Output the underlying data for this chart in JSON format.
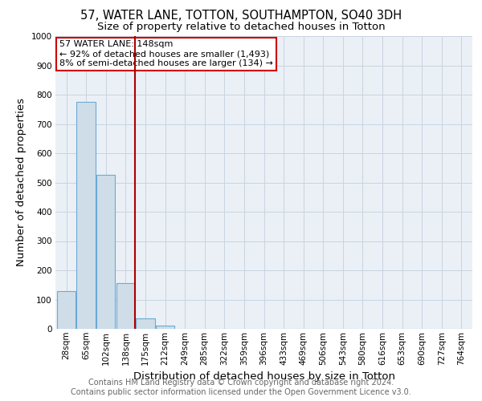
{
  "title": "57, WATER LANE, TOTTON, SOUTHAMPTON, SO40 3DH",
  "subtitle": "Size of property relative to detached houses in Totton",
  "xlabel": "Distribution of detached houses by size in Totton",
  "ylabel": "Number of detached properties",
  "bar_labels": [
    "28sqm",
    "65sqm",
    "102sqm",
    "138sqm",
    "175sqm",
    "212sqm",
    "249sqm",
    "285sqm",
    "322sqm",
    "359sqm",
    "396sqm",
    "433sqm",
    "469sqm",
    "506sqm",
    "543sqm",
    "580sqm",
    "616sqm",
    "653sqm",
    "690sqm",
    "727sqm",
    "764sqm"
  ],
  "bar_values": [
    130,
    775,
    525,
    155,
    35,
    10,
    0,
    0,
    0,
    0,
    0,
    0,
    0,
    0,
    0,
    0,
    0,
    0,
    0,
    0,
    0
  ],
  "bar_color": "#cfdde9",
  "bar_edge_color": "#6aaad4",
  "bar_edge_width": 0.8,
  "grid_color": "#c8d4e0",
  "background_color": "#eaf0f6",
  "property_line_color": "#aa0000",
  "annotation_text_line1": "57 WATER LANE: 148sqm",
  "annotation_text_line2": "← 92% of detached houses are smaller (1,493)",
  "annotation_text_line3": "8% of semi-detached houses are larger (134) →",
  "annotation_box_facecolor": "#ffffff",
  "annotation_box_edgecolor": "#cc0000",
  "ylim": [
    0,
    1000
  ],
  "yticks": [
    0,
    100,
    200,
    300,
    400,
    500,
    600,
    700,
    800,
    900,
    1000
  ],
  "footer_line1": "Contains HM Land Registry data © Crown copyright and database right 2024.",
  "footer_line2": "Contains public sector information licensed under the Open Government Licence v3.0.",
  "title_fontsize": 10.5,
  "subtitle_fontsize": 9.5,
  "axis_label_fontsize": 9.5,
  "tick_fontsize": 7.5,
  "annotation_fontsize": 8.0,
  "footer_fontsize": 7.0
}
